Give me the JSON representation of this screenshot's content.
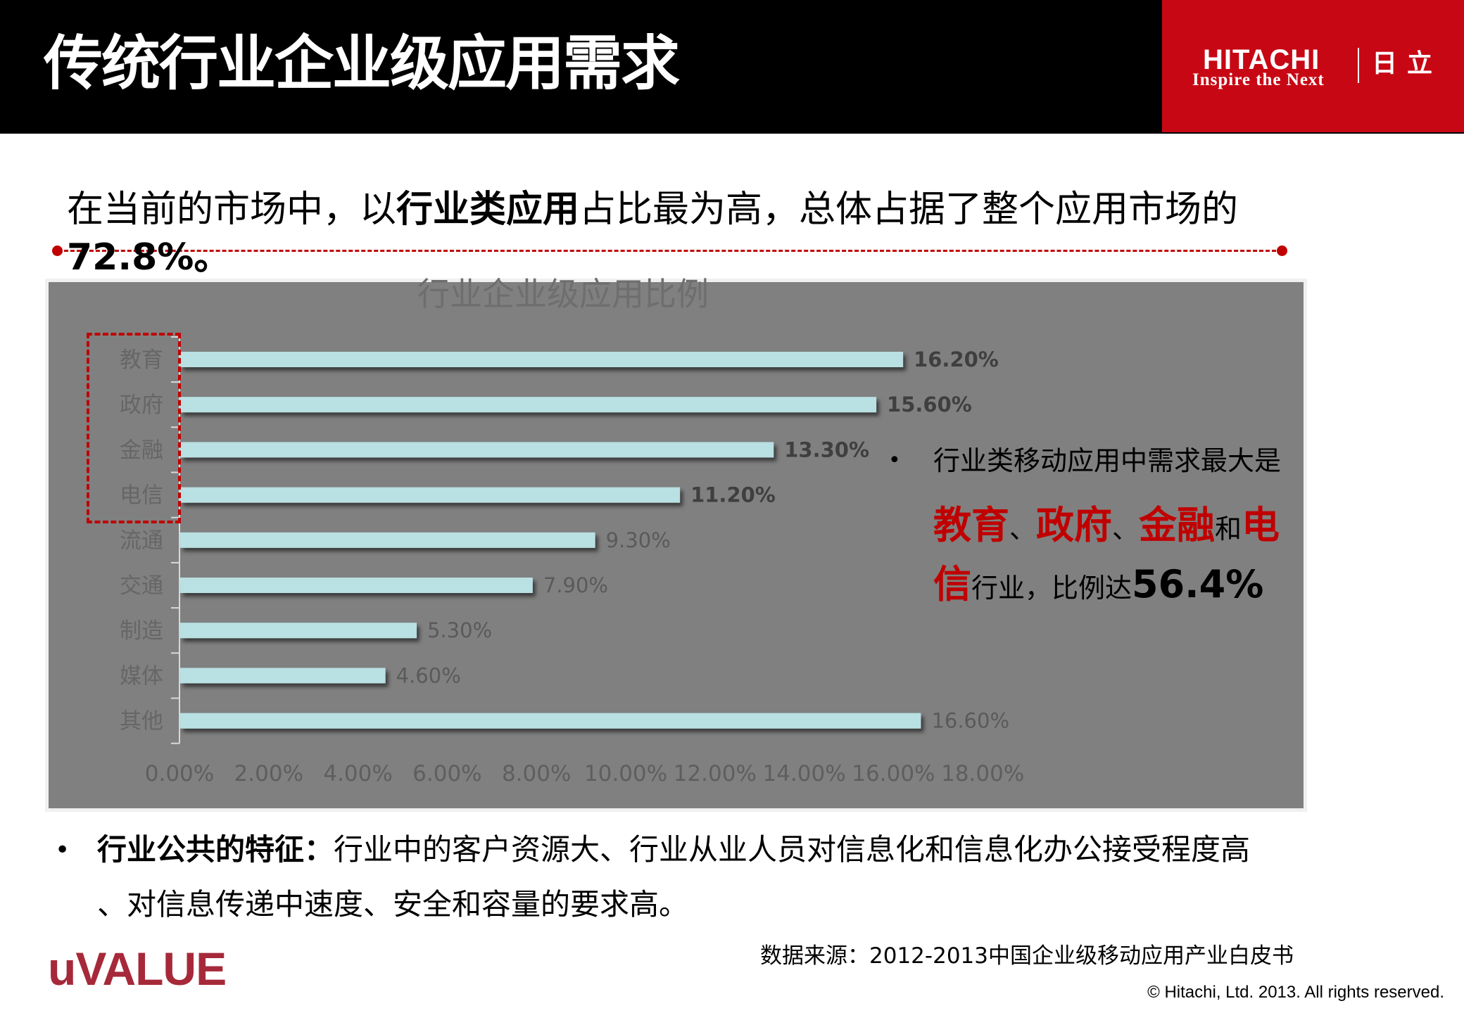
{
  "header": {
    "title": "传统行业企业级应用需求"
  },
  "logo": {
    "brand": "HITACHI",
    "tagline": "Inspire the Next",
    "cn": "日立",
    "color": "#c70814"
  },
  "intro": {
    "pre": "在当前的市场中，以",
    "bold": "行业类应用",
    "post": "占比最为高，总体占据了整个应用市场的",
    "value": "72.8%。"
  },
  "callout": {
    "bullet": "•",
    "line1": "行业类移动应用中需求最大是",
    "hl1": "教育",
    "sep1": "、",
    "hl2": "政府",
    "sep2": "、",
    "hl3": "金融",
    "and": "和",
    "hl4a": "电",
    "hl4b": "信",
    "tail": "行业，比例达",
    "value": "56.4%"
  },
  "bottom": {
    "bullet": "•",
    "label": "行业公共的特征：",
    "text1": "行业中的客户资源大、行业从业人员对信息化和信息化办公接受程度高",
    "text2": "、对信息传递中速度、安全和容量的要求高。"
  },
  "footer": {
    "brand": "uVALUE",
    "source": "数据来源：2012-2013中国企业级移动应用产业白皮书",
    "copyright": "© Hitachi, Ltd. 2013. All rights reserved."
  },
  "chart_data": {
    "type": "bar",
    "orientation": "horizontal",
    "title": "行业企业级应用比例",
    "categories": [
      "教育",
      "政府",
      "金融",
      "电信",
      "流通",
      "交通",
      "制造",
      "媒体",
      "其他"
    ],
    "values": [
      16.2,
      15.6,
      13.3,
      11.2,
      9.3,
      7.9,
      5.3,
      4.6,
      16.6
    ],
    "data_labels": [
      "16.20%",
      "15.60%",
      "13.30%",
      "11.20%",
      "9.30%",
      "7.90%",
      "5.30%",
      "4.60%",
      "16.60%"
    ],
    "highlighted": [
      "教育",
      "政府",
      "金融",
      "电信"
    ],
    "xlim": [
      0,
      18
    ],
    "x_ticks": [
      "0.00%",
      "2.00%",
      "4.00%",
      "6.00%",
      "8.00%",
      "10.00%",
      "12.00%",
      "14.00%",
      "16.00%",
      "18.00%"
    ],
    "grid": false,
    "bar_color": "#b9e0e3",
    "background": "#808080",
    "highlight_color": "#c00000"
  }
}
